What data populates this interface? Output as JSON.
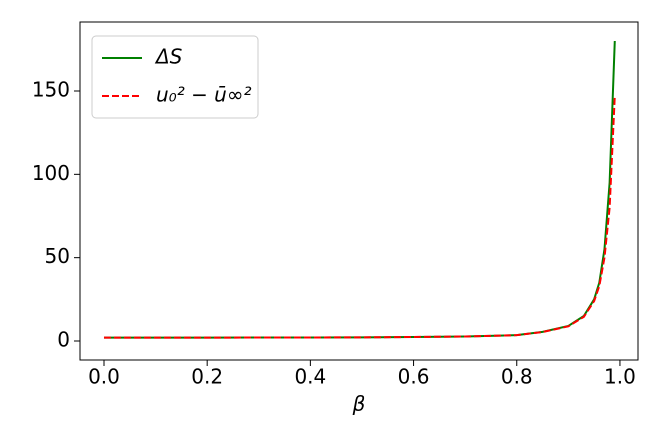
{
  "chart_data": {
    "type": "line",
    "xlabel": "β",
    "x": [
      0,
      0.1,
      0.2,
      0.3,
      0.4,
      0.5,
      0.6,
      0.7,
      0.8,
      0.85,
      0.9,
      0.93,
      0.95,
      0.96,
      0.97,
      0.98,
      0.99
    ],
    "series": [
      {
        "name": "ΔS",
        "color": "#008000",
        "dash": false,
        "values": [
          2.0,
          2.0,
          2.0,
          2.1,
          2.1,
          2.2,
          2.4,
          2.7,
          3.5,
          5.5,
          9,
          15,
          25,
          35,
          55,
          95,
          180
        ]
      },
      {
        "name": "u₀² − ū∞²",
        "color": "#ff0000",
        "dash": true,
        "values": [
          2.0,
          2.0,
          2.0,
          2.1,
          2.1,
          2.2,
          2.4,
          2.7,
          3.5,
          5.4,
          8.8,
          14.5,
          24,
          33,
          50,
          80,
          147
        ]
      }
    ],
    "xlim": [
      -0.0465,
      1.035
    ],
    "ylim": [
      -11.4,
      191.4
    ],
    "xticks": [
      {
        "value": 0,
        "label": "0.0"
      },
      {
        "value": 0.2,
        "label": "0.2"
      },
      {
        "value": 0.4,
        "label": "0.4"
      },
      {
        "value": 0.6,
        "label": "0.6"
      },
      {
        "value": 0.8,
        "label": "0.8"
      },
      {
        "value": 1,
        "label": "1.0"
      }
    ],
    "yticks": [
      0,
      50,
      100,
      150
    ],
    "legend": "upper left"
  }
}
